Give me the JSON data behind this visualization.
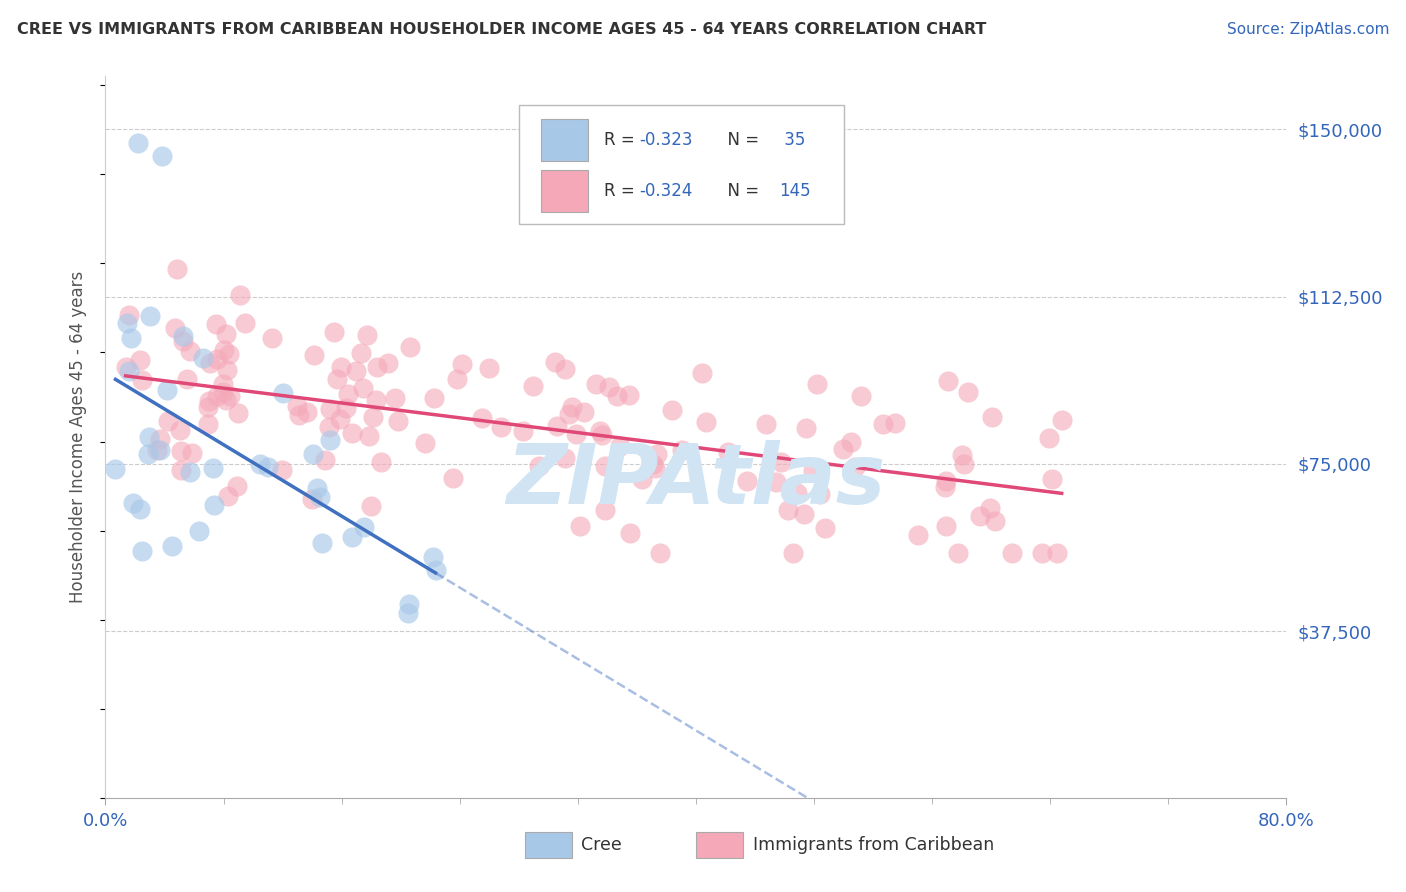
{
  "title": "CREE VS IMMIGRANTS FROM CARIBBEAN HOUSEHOLDER INCOME AGES 45 - 64 YEARS CORRELATION CHART",
  "source": "Source: ZipAtlas.com",
  "ylabel": "Householder Income Ages 45 - 64 years",
  "yticks": [
    0,
    37500,
    75000,
    112500,
    150000
  ],
  "ytick_labels": [
    "",
    "$37,500",
    "$75,000",
    "$112,500",
    "$150,000"
  ],
  "xlim": [
    0,
    80
  ],
  "ylim": [
    0,
    162000
  ],
  "color_cree": "#a8c8e8",
  "color_caribbean": "#f4a8b8",
  "line_color_cree": "#4070c0",
  "line_color_caribbean": "#e04878",
  "watermark": "ZIPAtlas",
  "watermark_color": "#d0e4f4",
  "cree_intercept": 90000,
  "cree_slope": -1600,
  "carib_intercept": 96000,
  "carib_slope": -430,
  "background_color": "#ffffff",
  "grid_color": "#cccccc",
  "tick_color": "#3366bb",
  "title_color": "#333333",
  "label_color": "#555555"
}
